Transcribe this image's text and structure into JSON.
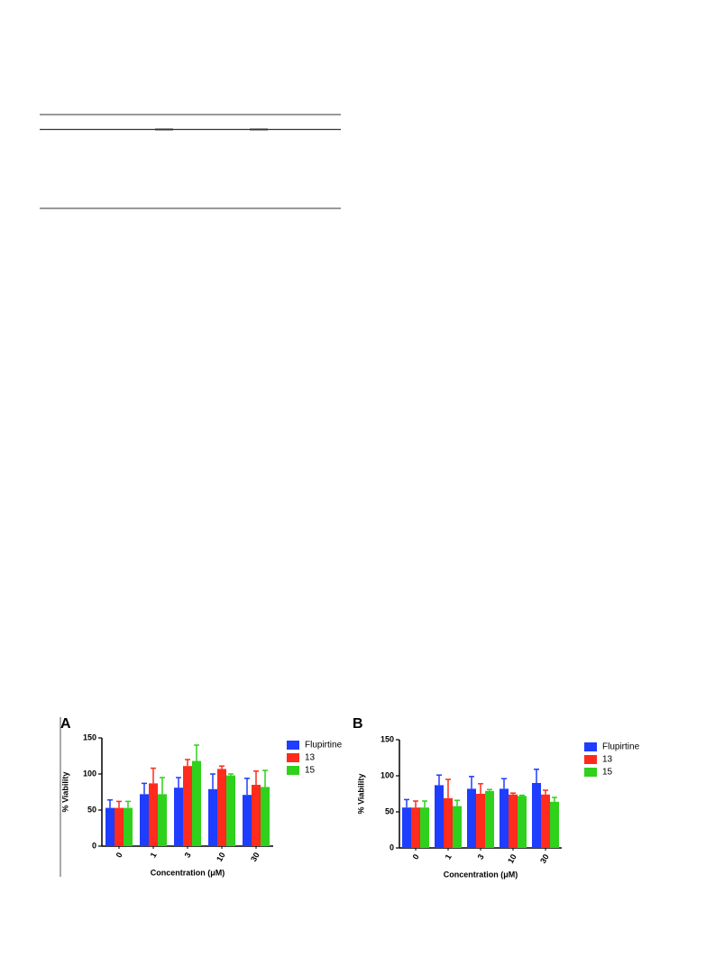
{
  "chart_data": [
    {
      "type": "bar",
      "title": "A",
      "x_label": "Concentration (μM)",
      "y_label": "% Viability",
      "categories": [
        "0",
        "1",
        "3",
        "10",
        "30"
      ],
      "ylim": [
        0,
        150
      ],
      "yticks": [
        0,
        50,
        100,
        150
      ],
      "series": [
        {
          "name": "Flupirtine",
          "color": "#1f3dff",
          "values": [
            53,
            72,
            81,
            79,
            71
          ],
          "errors": [
            11,
            15,
            14,
            21,
            23
          ]
        },
        {
          "name": "13",
          "color": "#ff2b1c",
          "values": [
            53,
            87,
            111,
            107,
            85
          ],
          "errors": [
            9,
            21,
            9,
            4,
            19
          ]
        },
        {
          "name": "15",
          "color": "#2fd11c",
          "values": [
            53,
            72,
            118,
            98,
            82
          ],
          "errors": [
            9,
            23,
            22,
            2,
            23
          ]
        }
      ]
    },
    {
      "type": "bar",
      "title": "B",
      "x_label": "Concentration (μM)",
      "y_label": "% Viability",
      "categories": [
        "0",
        "1",
        "3",
        "10",
        "30"
      ],
      "ylim": [
        0,
        150
      ],
      "yticks": [
        0,
        50,
        100,
        150
      ],
      "series": [
        {
          "name": "Flupirtine",
          "color": "#1f3dff",
          "values": [
            56,
            87,
            82,
            82,
            90
          ],
          "errors": [
            11,
            14,
            17,
            14,
            19
          ]
        },
        {
          "name": "13",
          "color": "#ff2b1c",
          "values": [
            56,
            69,
            75,
            74,
            74
          ],
          "errors": [
            9,
            26,
            14,
            2,
            6
          ]
        },
        {
          "name": "15",
          "color": "#2fd11c",
          "values": [
            56,
            58,
            79,
            72,
            64
          ],
          "errors": [
            9,
            8,
            2,
            1,
            6
          ]
        }
      ]
    }
  ]
}
